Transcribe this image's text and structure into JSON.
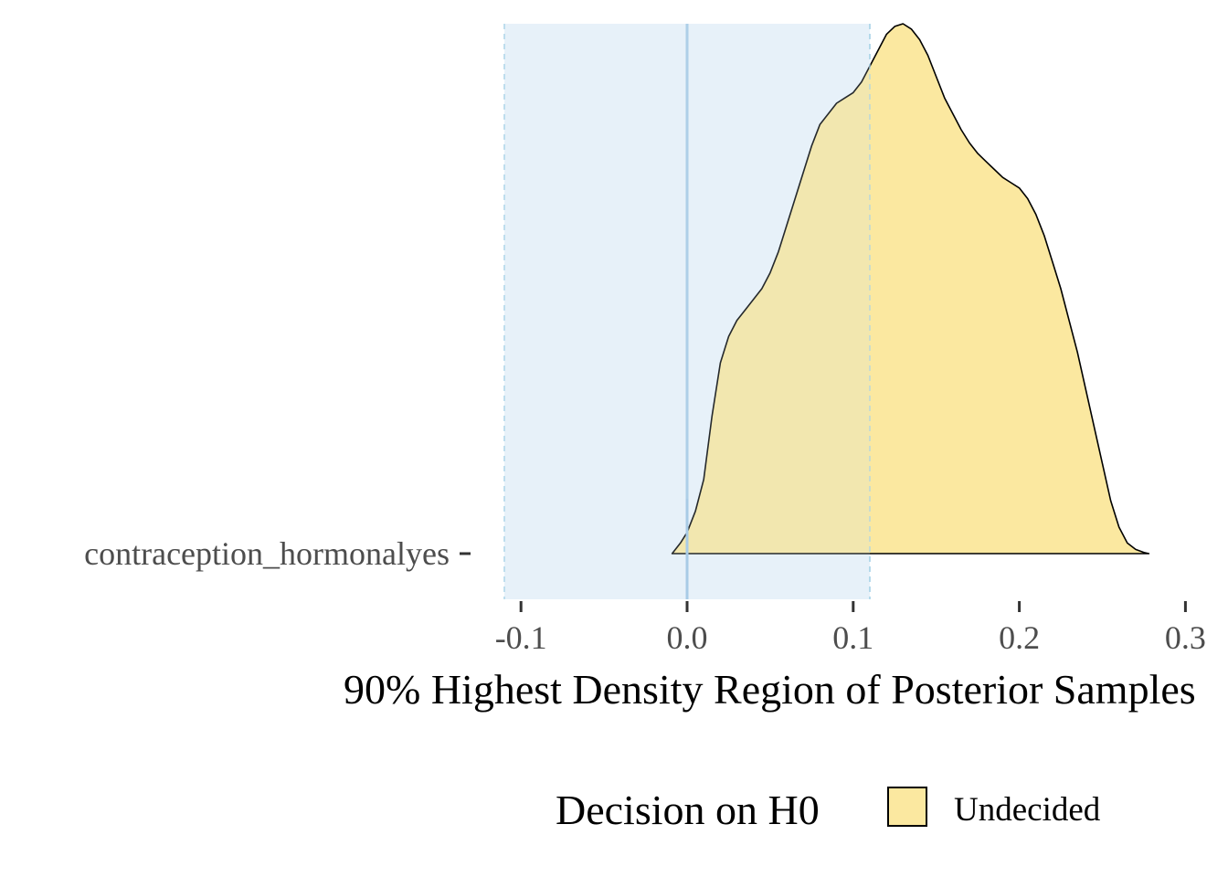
{
  "chart_data": {
    "type": "area",
    "title": "",
    "xlabel": "90% Highest Density Region of Posterior Samples",
    "ylabel": "",
    "xlim": [
      -0.121,
      0.3
    ],
    "x_ticks": [
      -0.1,
      0.0,
      0.1,
      0.2,
      0.3
    ],
    "x_tick_labels": [
      "-0.1",
      "0.0",
      "0.1",
      "0.2",
      "0.3"
    ],
    "categories": [
      "contraception_hormonalyes"
    ],
    "rope": {
      "low": -0.11,
      "high": 0.11,
      "color": "#cfe3f5"
    },
    "reference_line": {
      "x": 0.0,
      "color": "#a8cbe6"
    },
    "series": [
      {
        "category": "contraception_hormonalyes",
        "decision": "Undecided",
        "fill": "#fbe8a0",
        "density": {
          "x": [
            -0.009,
            -0.004,
            0.0,
            0.005,
            0.01,
            0.015,
            0.02,
            0.025,
            0.03,
            0.035,
            0.04,
            0.045,
            0.05,
            0.055,
            0.06,
            0.065,
            0.07,
            0.075,
            0.08,
            0.085,
            0.09,
            0.095,
            0.1,
            0.105,
            0.11,
            0.115,
            0.12,
            0.125,
            0.13,
            0.135,
            0.14,
            0.145,
            0.15,
            0.155,
            0.16,
            0.165,
            0.17,
            0.175,
            0.18,
            0.185,
            0.19,
            0.195,
            0.2,
            0.205,
            0.21,
            0.215,
            0.22,
            0.225,
            0.23,
            0.235,
            0.24,
            0.245,
            0.25,
            0.255,
            0.26,
            0.265,
            0.27,
            0.275,
            0.278
          ],
          "y": [
            0.0,
            0.02,
            0.04,
            0.08,
            0.14,
            0.26,
            0.36,
            0.41,
            0.44,
            0.46,
            0.48,
            0.5,
            0.53,
            0.57,
            0.62,
            0.67,
            0.72,
            0.77,
            0.81,
            0.83,
            0.85,
            0.86,
            0.87,
            0.89,
            0.92,
            0.95,
            0.98,
            0.995,
            1.0,
            0.99,
            0.97,
            0.94,
            0.9,
            0.86,
            0.83,
            0.8,
            0.775,
            0.755,
            0.74,
            0.725,
            0.71,
            0.7,
            0.69,
            0.67,
            0.64,
            0.6,
            0.55,
            0.5,
            0.44,
            0.38,
            0.31,
            0.24,
            0.17,
            0.1,
            0.05,
            0.02,
            0.008,
            0.002,
            0.0
          ]
        }
      }
    ],
    "legend": {
      "title": "Decision on H0",
      "position": "bottom",
      "items": [
        {
          "label": "Undecided",
          "color": "#fbe8a0"
        }
      ]
    },
    "grid": false
  }
}
